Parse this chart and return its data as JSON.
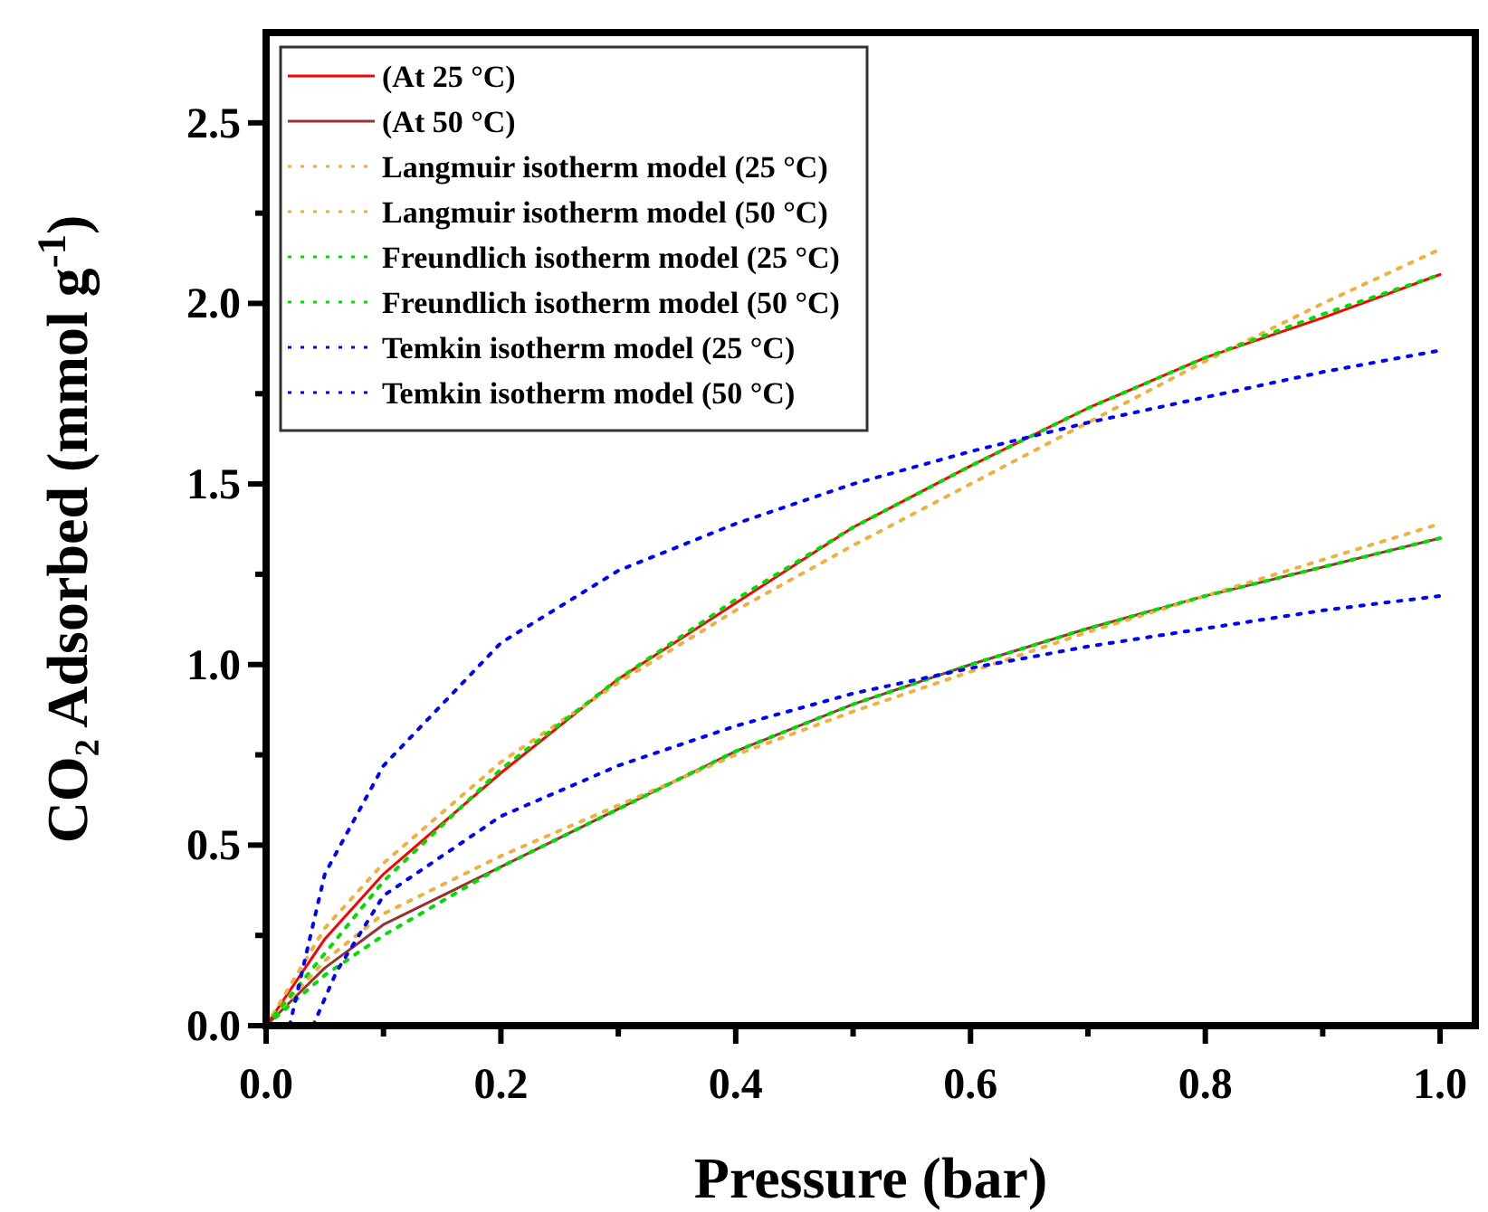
{
  "chart_data": {
    "type": "line",
    "xlabel": "Pressure (bar)",
    "ylabel": "CO₂ Adsorbed (mmol g$^{-1}$)",
    "xlim": [
      0,
      1.03
    ],
    "ylim": [
      0,
      2.75
    ],
    "xticks": [
      {
        "value": 0,
        "label": "0.0"
      },
      {
        "value": 0.1,
        "label": null
      },
      {
        "value": 0.2,
        "label": "0.2"
      },
      {
        "value": 0.3,
        "label": null
      },
      {
        "value": 0.4,
        "label": "0.4"
      },
      {
        "value": 0.5,
        "label": null
      },
      {
        "value": 0.6,
        "label": "0.6"
      },
      {
        "value": 0.7,
        "label": null
      },
      {
        "value": 0.8,
        "label": "0.8"
      },
      {
        "value": 0.9,
        "label": null
      },
      {
        "value": 1,
        "label": "1.0"
      }
    ],
    "yticks": [
      {
        "value": 0,
        "label": "0.0"
      },
      {
        "value": 0.25,
        "label": null
      },
      {
        "value": 0.5,
        "label": "0.5"
      },
      {
        "value": 0.75,
        "label": null
      },
      {
        "value": 1,
        "label": "1.0"
      },
      {
        "value": 1.25,
        "label": null
      },
      {
        "value": 1.5,
        "label": "1.5"
      },
      {
        "value": 1.75,
        "label": null
      },
      {
        "value": 2,
        "label": "2.0"
      },
      {
        "value": 2.25,
        "label": null
      },
      {
        "value": 2.5,
        "label": "2.5"
      }
    ],
    "grid": false,
    "legend": "top left",
    "marker": "none",
    "series": [
      {
        "name": "(At 25 °C)",
        "color": "#ff0000",
        "line_style": "solid",
        "x": [
          0,
          0.05,
          0.1,
          0.2,
          0.3,
          0.4,
          0.5,
          0.6,
          0.7,
          0.8,
          0.9,
          1.0
        ],
        "values": [
          0,
          0.24,
          0.42,
          0.7,
          0.96,
          1.17,
          1.38,
          1.55,
          1.71,
          1.85,
          1.96,
          2.08
        ]
      },
      {
        "name": "(At 50 °C)",
        "color": "#9b3030",
        "line_style": "solid",
        "x": [
          0,
          0.05,
          0.1,
          0.2,
          0.3,
          0.4,
          0.5,
          0.6,
          0.7,
          0.8,
          0.9,
          1.0
        ],
        "values": [
          0,
          0.16,
          0.28,
          0.44,
          0.6,
          0.76,
          0.89,
          1.0,
          1.1,
          1.19,
          1.27,
          1.35
        ]
      },
      {
        "name": "Langmuir isotherm model (25 °C)",
        "color": "#f0b040",
        "line_style": "dotted",
        "x": [
          0,
          0.05,
          0.1,
          0.2,
          0.3,
          0.4,
          0.5,
          0.6,
          0.7,
          0.8,
          0.9,
          1.0
        ],
        "values": [
          0,
          0.27,
          0.45,
          0.73,
          0.95,
          1.15,
          1.33,
          1.5,
          1.67,
          1.84,
          2.0,
          2.15
        ]
      },
      {
        "name": "Langmuir isotherm model (50 °C)",
        "color": "#f0b040",
        "line_style": "dotted",
        "x": [
          0,
          0.05,
          0.1,
          0.2,
          0.3,
          0.4,
          0.5,
          0.6,
          0.7,
          0.8,
          0.9,
          1.0
        ],
        "values": [
          0,
          0.18,
          0.31,
          0.47,
          0.61,
          0.75,
          0.87,
          0.98,
          1.09,
          1.19,
          1.29,
          1.39
        ]
      },
      {
        "name": "Freundlich isotherm model (25 °C)",
        "color": "#00dd00",
        "line_style": "dotted",
        "x": [
          0,
          0.05,
          0.1,
          0.2,
          0.3,
          0.4,
          0.5,
          0.6,
          0.7,
          0.8,
          0.9,
          1.0
        ],
        "values": [
          0,
          0.2,
          0.4,
          0.71,
          0.96,
          1.18,
          1.38,
          1.55,
          1.71,
          1.85,
          1.97,
          2.08
        ]
      },
      {
        "name": "Freundlich isotherm model (50 °C)",
        "color": "#00dd00",
        "line_style": "dotted",
        "x": [
          0,
          0.05,
          0.1,
          0.2,
          0.3,
          0.4,
          0.5,
          0.6,
          0.7,
          0.8,
          0.9,
          1.0
        ],
        "values": [
          0,
          0.14,
          0.25,
          0.44,
          0.6,
          0.76,
          0.89,
          1.0,
          1.1,
          1.19,
          1.27,
          1.35
        ]
      },
      {
        "name": "Temkin isotherm model (25 °C)",
        "color": "#0000ff",
        "line_style": "dotted",
        "x": [
          0.02,
          0.05,
          0.1,
          0.2,
          0.3,
          0.4,
          0.5,
          0.6,
          0.7,
          0.8,
          0.9,
          1.0
        ],
        "values": [
          0,
          0.42,
          0.72,
          1.06,
          1.26,
          1.39,
          1.5,
          1.59,
          1.67,
          1.74,
          1.81,
          1.87
        ]
      },
      {
        "name": "Temkin isotherm model (50 °C)",
        "color": "#0000ff",
        "line_style": "dotted",
        "x": [
          0.04,
          0.06,
          0.1,
          0.2,
          0.3,
          0.4,
          0.5,
          0.6,
          0.7,
          0.8,
          0.9,
          1.0
        ],
        "values": [
          0,
          0.15,
          0.36,
          0.58,
          0.72,
          0.83,
          0.92,
          0.99,
          1.05,
          1.1,
          1.15,
          1.19
        ]
      }
    ]
  }
}
